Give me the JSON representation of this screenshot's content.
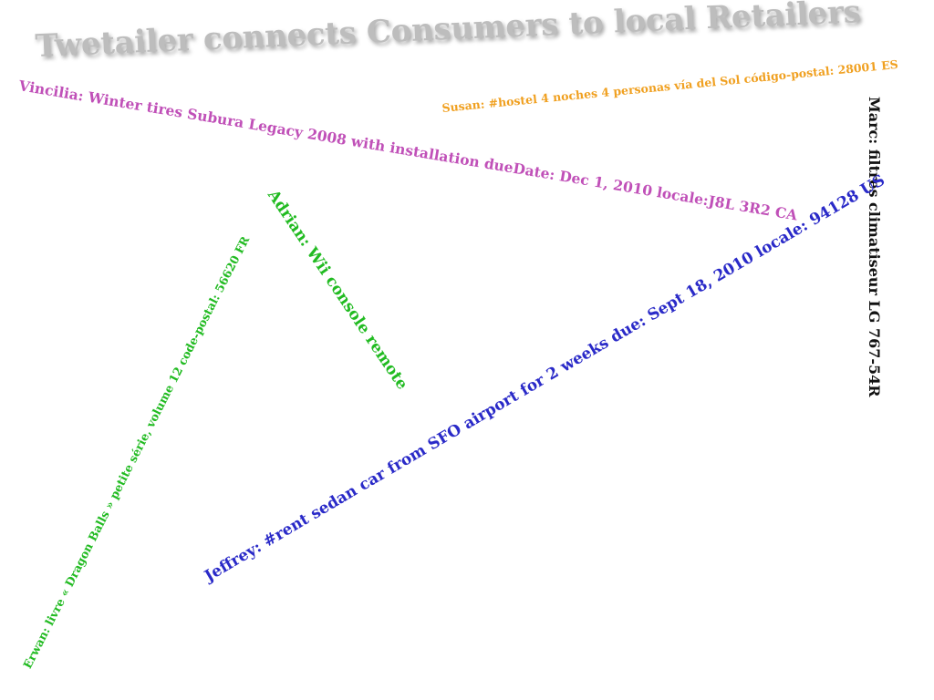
{
  "headline": "Twetailer connects Consumers to local Retailers",
  "messages": {
    "vincilia": "Vincilia: Winter tires Subura Legacy 2008 with installation dueDate: Dec 1, 2010 locale:J8L 3R2 CA",
    "susan": "Susan: #hostel 4 noches 4 personas vía del Sol código-postal: 28001 ES",
    "marc": "Marc: filtres climatiseur LG 767-54R",
    "adrian": "Adrian: Wii console remote",
    "erwan": "Erwan: livre « Dragon Balls » petite série, volume 12 code-postal: 56620 FR",
    "jeffrey": "Jeffrey: #rent sedan car from SFO airport for 2 weeks due: Sept 18, 2010 locale: 94128 US"
  },
  "colors": {
    "headline": "#bdbdbd",
    "vincilia": "#c050b8",
    "susan": "#f0a020",
    "marc": "#111111",
    "adrian": "#22bb22",
    "erwan": "#22bb22",
    "jeffrey": "#2a2ac8"
  }
}
